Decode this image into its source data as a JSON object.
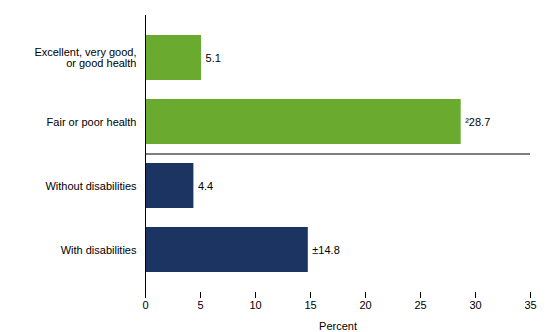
{
  "chart_data": {
    "type": "bar",
    "orientation": "horizontal",
    "categories": [
      "Excellent, very good,\nor good health",
      "Fair or poor health",
      "Without disabilities",
      "With disabilities"
    ],
    "values": [
      5.1,
      28.7,
      4.4,
      14.8
    ],
    "value_labels": [
      "5.1",
      "²28.7",
      "4.4",
      "±14.8"
    ],
    "colors": [
      "#6aaa2e",
      "#6aaa2e",
      "#1b3461",
      "#1b3461"
    ],
    "data_labels": true,
    "xlabel": "Percent",
    "xlim": [
      0,
      35
    ],
    "xticks": [
      0,
      5,
      10,
      15,
      20,
      25,
      30,
      35
    ]
  }
}
